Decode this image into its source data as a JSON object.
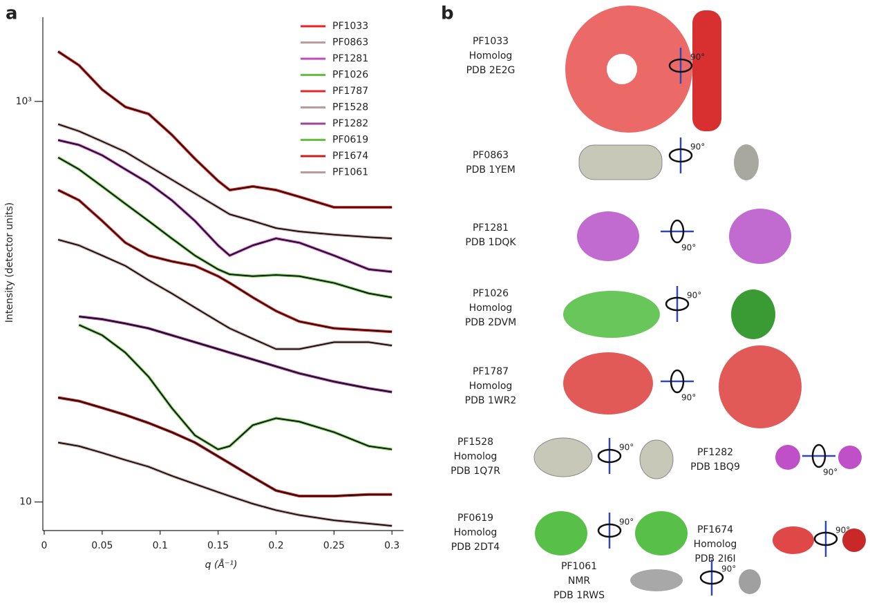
{
  "chart_data": {
    "type": "line",
    "panel_label": "a",
    "x_label": "q (Å⁻¹)",
    "y_label": "Intensity (detector units)",
    "log_y": true,
    "xlim": [
      0,
      0.31
    ],
    "ylim": [
      7.2,
      2630
    ],
    "xticks": [
      0,
      0.05,
      0.1,
      0.15,
      0.2,
      0.25,
      0.3
    ],
    "yticks": [
      {
        "value": 1000,
        "label": "10³"
      },
      10
    ],
    "legend": "upper right",
    "fit_color": "#000000",
    "x": [
      0.012,
      0.03,
      0.05,
      0.07,
      0.09,
      0.11,
      0.13,
      0.15,
      0.16,
      0.18,
      0.2,
      0.22,
      0.25,
      0.28,
      0.3
    ],
    "series": [
      {
        "name": "PF1033",
        "color": "#e82020",
        "values": [
          1774,
          1514,
          1145,
          938,
          866,
          682,
          517,
          401,
          361,
          376,
          361,
          334,
          296,
          296,
          296
        ]
      },
      {
        "name": "PF0863",
        "color": "#c49a98",
        "values": [
          769,
          710,
          631,
          560,
          477,
          407,
          347,
          296,
          273,
          253,
          233,
          224,
          216,
          210,
          207
        ]
      },
      {
        "name": "PF1281",
        "color": "#c048c0",
        "values": [
          641,
          606,
          538,
          458,
          391,
          321,
          253,
          191,
          170,
          191,
          207,
          197,
          170,
          145,
          141
        ]
      },
      {
        "name": "PF1026",
        "color": "#66c23e",
        "values": [
          525,
          458,
          376,
          308,
          253,
          207,
          170,
          145,
          137,
          134,
          136,
          134,
          124,
          110,
          105
        ]
      },
      {
        "name": "PF1787",
        "color": "#e02828",
        "values": [
          361,
          321,
          253,
          197,
          170,
          159,
          151,
          134,
          124,
          105,
          89.8,
          79.7,
          73.6,
          71.9,
          70.8
        ]
      },
      {
        "name": "PF1528",
        "color": "#c09a98",
        "values": [
          204,
          191,
          170,
          151,
          128,
          110,
          93.5,
          79.7,
          73.6,
          65.3,
          58,
          58,
          62.8,
          62.8,
          60.4
        ]
      },
      {
        "name": "PF1282",
        "color": "#a040a0",
        "values": [
          null,
          84.3,
          81.7,
          77.8,
          73.6,
          68,
          62.8,
          58,
          55.7,
          51.5,
          47.5,
          43.9,
          39.9,
          36.9,
          35.4
        ]
      },
      {
        "name": "PF0619",
        "color": "#66c23e",
        "values": [
          null,
          76.6,
          68,
          55.7,
          42.2,
          29.5,
          21.5,
          18.3,
          19,
          24.2,
          26.2,
          25.2,
          22.3,
          19,
          18.3
        ]
      },
      {
        "name": "PF1674",
        "color": "#c81e1e",
        "values": [
          33.2,
          31.9,
          29.5,
          27.2,
          24.8,
          22.3,
          19.8,
          16.9,
          15.6,
          13.3,
          11.4,
          10.7,
          10.7,
          10.9,
          10.9
        ]
      },
      {
        "name": "PF1061",
        "color": "#c09898",
        "values": [
          19.8,
          19,
          17.6,
          16.2,
          15,
          13.5,
          12.3,
          11.2,
          10.7,
          9.8,
          9.1,
          8.6,
          8.1,
          7.8,
          7.6
        ]
      }
    ]
  },
  "panel_b": {
    "label": "b",
    "rotation_label": "90°",
    "entries": [
      {
        "lines": [
          "PF1033",
          "Homolog",
          "PDB 2E2G"
        ]
      },
      {
        "lines": [
          "PF0863",
          "PDB 1YEM"
        ]
      },
      {
        "lines": [
          "PF1281",
          "PDB 1DQK"
        ]
      },
      {
        "lines": [
          "PF1026",
          "Homolog",
          "PDB 2DVM"
        ]
      },
      {
        "lines": [
          "PF1787",
          "Homolog",
          "PDB 1WR2"
        ]
      },
      {
        "lines": [
          "PF1528",
          "Homolog",
          "PDB 1Q7R"
        ]
      },
      {
        "lines": [
          "PF1282",
          "PDB 1BQ9"
        ]
      },
      {
        "lines": [
          "PF0619",
          "Homolog",
          "PDB 2DT4"
        ]
      },
      {
        "lines": [
          "PF1674",
          "Homolog",
          "PDB 2I6I"
        ]
      },
      {
        "lines": [
          "PF1061",
          "NMR",
          "PDB 1RWS"
        ]
      }
    ]
  }
}
